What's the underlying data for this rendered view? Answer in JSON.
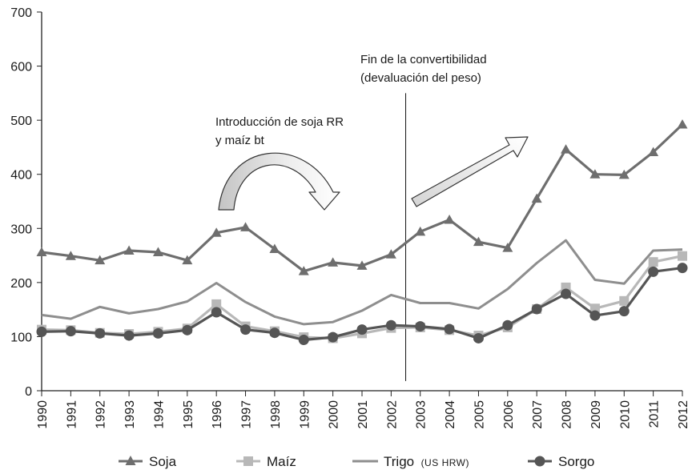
{
  "chart_data": {
    "type": "line",
    "title": "",
    "xlabel": "",
    "ylabel": "",
    "ylim": [
      0,
      700
    ],
    "yticks": [
      0,
      100,
      200,
      300,
      400,
      500,
      600,
      700
    ],
    "grid": false,
    "legend_position": "bottom",
    "categories": [
      "1990",
      "1991",
      "1992",
      "1993",
      "1994",
      "1995",
      "1996",
      "1997",
      "1998",
      "1999",
      "2000",
      "2001",
      "2002",
      "2003",
      "2004",
      "2005",
      "2006",
      "2007",
      "2008",
      "2009",
      "2010",
      "2011",
      "2012"
    ],
    "series": [
      {
        "name": "Soja",
        "marker": "triangle",
        "color": "#6e6e6e",
        "values": [
          256,
          249,
          241,
          259,
          256,
          241,
          292,
          302,
          262,
          221,
          237,
          231,
          252,
          294,
          316,
          275,
          264,
          355,
          446,
          400,
          399,
          441,
          492
        ]
      },
      {
        "name": "Maíz",
        "marker": "square",
        "color": "#b8b8b8",
        "values": [
          113,
          112,
          107,
          105,
          109,
          115,
          160,
          119,
          110,
          99,
          97,
          106,
          116,
          117,
          112,
          102,
          117,
          151,
          191,
          152,
          166,
          238,
          249
        ]
      },
      {
        "name": "Trigo",
        "name_suffix": "(US HRW)",
        "marker": "none",
        "color": "#8e8e8e",
        "values": [
          140,
          133,
          155,
          143,
          151,
          165,
          199,
          164,
          137,
          123,
          127,
          148,
          177,
          162,
          162,
          152,
          188,
          236,
          278,
          205,
          198,
          259,
          261
        ]
      },
      {
        "name": "Sorgo",
        "marker": "circle",
        "color": "#555555",
        "values": [
          109,
          110,
          106,
          102,
          106,
          112,
          145,
          113,
          107,
          94,
          99,
          113,
          121,
          119,
          114,
          97,
          121,
          151,
          179,
          139,
          147,
          220,
          227
        ]
      }
    ],
    "annotations": [
      {
        "text_lines": [
          "Introducción de soja RR",
          "y maíz bt"
        ],
        "arrow": "curved-down-right"
      },
      {
        "text_lines": [
          "Fin de la convertibilidad",
          "(devaluación del peso)"
        ],
        "vline_between": [
          "2002",
          "2003"
        ],
        "arrow": "diagonal-up-right"
      }
    ]
  }
}
